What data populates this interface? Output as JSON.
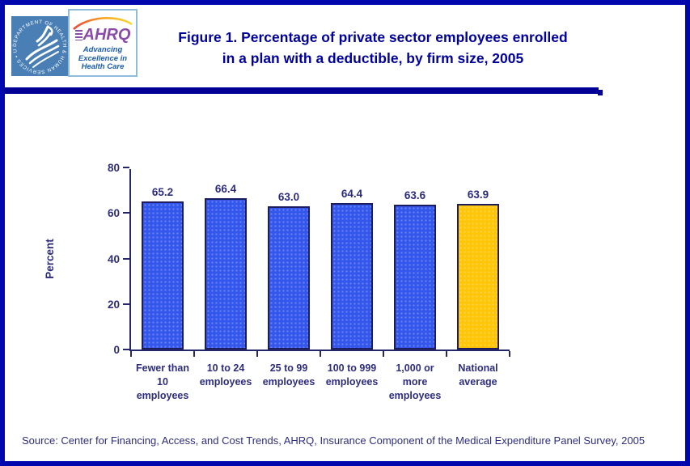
{
  "page": {
    "border_color": "#0008AD",
    "background": "#FFFFFF",
    "accent_navy": "#000099"
  },
  "header": {
    "title_line1": "Figure 1. Percentage of private sector employees enrolled",
    "title_line2": "in a plan with a deductible, by firm size, 2005",
    "title_color": "#00009B",
    "logos": {
      "hhs_ring_text": "DEPARTMENT OF HEALTH & HUMAN SERVICES • USA",
      "ahrq_acronym": "AHRQ",
      "ahrq_tagline_line1": "Advancing",
      "ahrq_tagline_line2": "Excellence in",
      "ahrq_tagline_line3": "Health Care"
    }
  },
  "chart_data": {
    "type": "bar",
    "title": "Figure 1. Percentage of private sector employees enrolled in a plan with a deductible, by firm size, 2005",
    "categories": [
      {
        "line1": "Fewer than 10",
        "line2": "employees"
      },
      {
        "line1": "10 to 24",
        "line2": "employees"
      },
      {
        "line1": "25 to 99",
        "line2": "employees"
      },
      {
        "line1": "100 to 999",
        "line2": "employees"
      },
      {
        "line1": "1,000 or more",
        "line2": "employees"
      },
      {
        "line1": "National",
        "line2": "average"
      }
    ],
    "values": [
      65.2,
      66.4,
      63.0,
      64.4,
      63.6,
      63.9
    ],
    "value_labels": [
      "65.2",
      "66.4",
      "63.0",
      "64.4",
      "63.6",
      "63.9"
    ],
    "bar_colors": [
      "#3356EC",
      "#3356EC",
      "#3356EC",
      "#3356EC",
      "#3356EC",
      "#FFC608"
    ],
    "xlabel": "",
    "ylabel": "Percent",
    "ylim": [
      0,
      80
    ],
    "yticks": [
      0,
      20,
      40,
      60,
      80
    ],
    "grid": false,
    "legend": "none"
  },
  "footer": {
    "source": "Source: Center for Financing, Access, and Cost Trends, AHRQ, Insurance Component of the Medical Expenditure Panel Survey, 2005"
  }
}
